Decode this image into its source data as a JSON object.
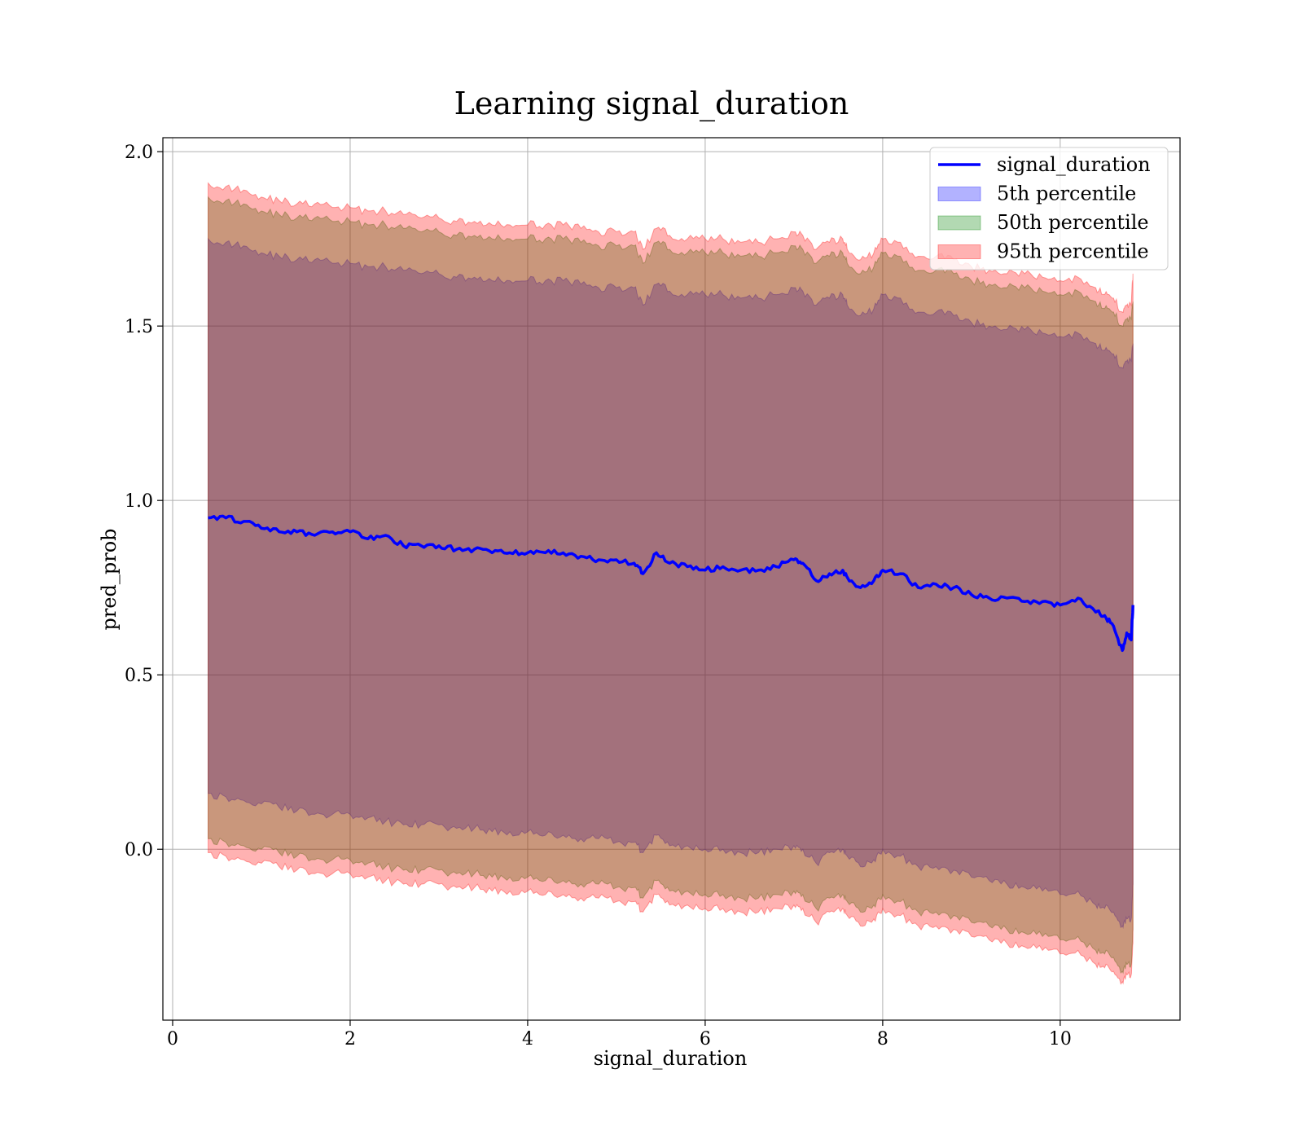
{
  "chart_data": {
    "type": "area",
    "title": "Learning signal_duration",
    "xlabel": "signal_duration",
    "ylabel": "pred_prob",
    "xlim": [
      -0.11,
      11.35
    ],
    "ylim": [
      -0.49,
      2.04
    ],
    "xticks": [
      0,
      2,
      4,
      6,
      8,
      10
    ],
    "yticks": [
      0.0,
      0.5,
      1.0,
      1.5,
      2.0
    ],
    "xtick_labels": [
      "0",
      "2",
      "4",
      "6",
      "8",
      "10"
    ],
    "ytick_labels": [
      "0.0",
      "0.5",
      "1.0",
      "1.5",
      "2.0"
    ],
    "grid": true,
    "legend_position": "top-right",
    "x": [
      0.4,
      0.6,
      0.8,
      1.0,
      1.2,
      1.4,
      1.6,
      1.8,
      2.0,
      2.2,
      2.4,
      2.6,
      2.8,
      3.0,
      3.2,
      3.4,
      3.6,
      3.8,
      4.0,
      4.2,
      4.4,
      4.6,
      4.8,
      5.0,
      5.2,
      5.3,
      5.45,
      5.6,
      5.8,
      6.0,
      6.2,
      6.4,
      6.6,
      6.8,
      7.0,
      7.1,
      7.25,
      7.4,
      7.55,
      7.6,
      7.75,
      7.9,
      8.0,
      8.2,
      8.4,
      8.6,
      8.8,
      9.0,
      9.2,
      9.4,
      9.6,
      9.8,
      10.0,
      10.2,
      10.4,
      10.5,
      10.6,
      10.7,
      10.75,
      10.8,
      10.82
    ],
    "series": [
      {
        "name": "signal_duration",
        "kind": "line",
        "color": "#0000ff",
        "values": [
          0.95,
          0.95,
          0.94,
          0.92,
          0.91,
          0.91,
          0.9,
          0.91,
          0.91,
          0.89,
          0.9,
          0.87,
          0.87,
          0.87,
          0.86,
          0.86,
          0.85,
          0.85,
          0.85,
          0.85,
          0.85,
          0.84,
          0.83,
          0.83,
          0.82,
          0.79,
          0.85,
          0.82,
          0.81,
          0.8,
          0.81,
          0.8,
          0.8,
          0.81,
          0.83,
          0.82,
          0.77,
          0.79,
          0.8,
          0.78,
          0.75,
          0.77,
          0.8,
          0.79,
          0.75,
          0.76,
          0.75,
          0.73,
          0.72,
          0.72,
          0.71,
          0.71,
          0.7,
          0.72,
          0.68,
          0.67,
          0.64,
          0.57,
          0.62,
          0.6,
          0.7
        ]
      },
      {
        "name": "5th percentile",
        "kind": "band",
        "color": "#0000ff",
        "lower": [
          0.16,
          0.15,
          0.14,
          0.13,
          0.12,
          0.11,
          0.1,
          0.1,
          0.1,
          0.09,
          0.08,
          0.07,
          0.07,
          0.07,
          0.06,
          0.06,
          0.05,
          0.05,
          0.05,
          0.04,
          0.04,
          0.03,
          0.03,
          0.02,
          0.02,
          -0.01,
          0.04,
          0.01,
          0.01,
          0.0,
          0.0,
          -0.01,
          -0.01,
          0.0,
          0.01,
          0.0,
          -0.04,
          -0.01,
          0.0,
          -0.02,
          -0.05,
          -0.03,
          0.0,
          -0.02,
          -0.05,
          -0.05,
          -0.06,
          -0.08,
          -0.09,
          -0.1,
          -0.11,
          -0.12,
          -0.13,
          -0.12,
          -0.16,
          -0.17,
          -0.18,
          -0.22,
          -0.2,
          -0.2,
          -0.1
        ],
        "upper": [
          1.75,
          1.74,
          1.73,
          1.71,
          1.7,
          1.69,
          1.69,
          1.68,
          1.68,
          1.67,
          1.67,
          1.66,
          1.65,
          1.65,
          1.64,
          1.64,
          1.63,
          1.63,
          1.63,
          1.63,
          1.63,
          1.62,
          1.61,
          1.61,
          1.61,
          1.56,
          1.62,
          1.6,
          1.59,
          1.59,
          1.59,
          1.58,
          1.58,
          1.59,
          1.61,
          1.6,
          1.56,
          1.58,
          1.59,
          1.56,
          1.53,
          1.55,
          1.59,
          1.58,
          1.54,
          1.54,
          1.53,
          1.51,
          1.5,
          1.49,
          1.49,
          1.48,
          1.47,
          1.48,
          1.45,
          1.43,
          1.42,
          1.38,
          1.4,
          1.4,
          1.45
        ]
      },
      {
        "name": "50th percentile",
        "kind": "band",
        "color": "#008000",
        "lower": [
          0.03,
          0.02,
          0.01,
          0.0,
          -0.01,
          -0.02,
          -0.03,
          -0.03,
          -0.03,
          -0.04,
          -0.05,
          -0.06,
          -0.06,
          -0.06,
          -0.07,
          -0.07,
          -0.08,
          -0.08,
          -0.08,
          -0.09,
          -0.09,
          -0.1,
          -0.1,
          -0.11,
          -0.11,
          -0.14,
          -0.09,
          -0.12,
          -0.12,
          -0.13,
          -0.13,
          -0.14,
          -0.14,
          -0.13,
          -0.12,
          -0.13,
          -0.17,
          -0.14,
          -0.13,
          -0.15,
          -0.18,
          -0.16,
          -0.13,
          -0.15,
          -0.18,
          -0.18,
          -0.19,
          -0.21,
          -0.22,
          -0.23,
          -0.24,
          -0.25,
          -0.26,
          -0.25,
          -0.29,
          -0.3,
          -0.31,
          -0.35,
          -0.33,
          -0.33,
          -0.23
        ],
        "upper": [
          1.87,
          1.86,
          1.85,
          1.83,
          1.82,
          1.81,
          1.81,
          1.8,
          1.8,
          1.79,
          1.79,
          1.78,
          1.77,
          1.77,
          1.76,
          1.76,
          1.75,
          1.75,
          1.75,
          1.75,
          1.75,
          1.74,
          1.73,
          1.73,
          1.73,
          1.68,
          1.74,
          1.72,
          1.71,
          1.71,
          1.71,
          1.7,
          1.7,
          1.71,
          1.73,
          1.72,
          1.68,
          1.7,
          1.71,
          1.68,
          1.65,
          1.67,
          1.71,
          1.7,
          1.66,
          1.66,
          1.65,
          1.63,
          1.62,
          1.61,
          1.61,
          1.6,
          1.59,
          1.6,
          1.57,
          1.55,
          1.54,
          1.5,
          1.52,
          1.52,
          1.57
        ]
      },
      {
        "name": "95th percentile",
        "kind": "band",
        "color": "#ff0000",
        "lower": [
          -0.01,
          -0.02,
          -0.03,
          -0.04,
          -0.05,
          -0.06,
          -0.07,
          -0.07,
          -0.07,
          -0.08,
          -0.09,
          -0.1,
          -0.1,
          -0.1,
          -0.11,
          -0.11,
          -0.12,
          -0.12,
          -0.12,
          -0.13,
          -0.13,
          -0.14,
          -0.14,
          -0.15,
          -0.15,
          -0.18,
          -0.13,
          -0.16,
          -0.16,
          -0.17,
          -0.17,
          -0.18,
          -0.18,
          -0.17,
          -0.16,
          -0.17,
          -0.21,
          -0.18,
          -0.17,
          -0.19,
          -0.22,
          -0.2,
          -0.17,
          -0.19,
          -0.22,
          -0.22,
          -0.23,
          -0.25,
          -0.26,
          -0.27,
          -0.28,
          -0.29,
          -0.3,
          -0.29,
          -0.33,
          -0.34,
          -0.35,
          -0.38,
          -0.36,
          -0.36,
          -0.27
        ],
        "upper": [
          1.91,
          1.9,
          1.89,
          1.87,
          1.86,
          1.85,
          1.85,
          1.84,
          1.84,
          1.83,
          1.83,
          1.82,
          1.81,
          1.81,
          1.8,
          1.8,
          1.79,
          1.79,
          1.79,
          1.79,
          1.79,
          1.78,
          1.77,
          1.77,
          1.77,
          1.72,
          1.78,
          1.76,
          1.75,
          1.75,
          1.75,
          1.74,
          1.74,
          1.75,
          1.77,
          1.76,
          1.72,
          1.74,
          1.75,
          1.72,
          1.69,
          1.71,
          1.75,
          1.74,
          1.7,
          1.7,
          1.69,
          1.67,
          1.66,
          1.65,
          1.65,
          1.64,
          1.63,
          1.64,
          1.61,
          1.59,
          1.58,
          1.54,
          1.56,
          1.56,
          1.65
        ]
      }
    ]
  }
}
